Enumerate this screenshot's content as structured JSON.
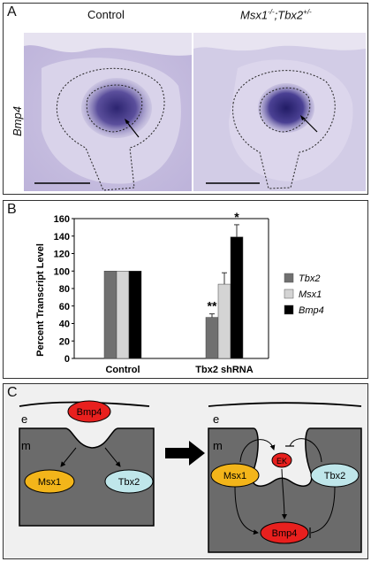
{
  "panel_a": {
    "letter": "A",
    "row_label": "Bmp4",
    "left_title": "Control",
    "right_title_gene1": "Msx1",
    "right_title_gene1_sup": "-/-",
    "right_title_sep": ";",
    "right_title_gene2": "Tbx2",
    "right_title_gene2_sup": "+/-"
  },
  "panel_b": {
    "letter": "B",
    "legend": [
      {
        "label": "Tbx2",
        "color": "#707070"
      },
      {
        "label": "Msx1",
        "color": "#d4d4d4"
      },
      {
        "label": "Bmp4",
        "color": "#000000"
      }
    ],
    "significance": [
      {
        "group": 1,
        "series": 0,
        "text": "**"
      },
      {
        "group": 1,
        "series": 2,
        "text": "*"
      }
    ]
  },
  "chart_data": {
    "type": "bar",
    "categories": [
      "Control",
      "Tbx2 shRNA"
    ],
    "series": [
      {
        "name": "Tbx2",
        "values": [
          100,
          47
        ],
        "errors": [
          0,
          4
        ]
      },
      {
        "name": "Msx1",
        "values": [
          100,
          85
        ],
        "errors": [
          0,
          13
        ]
      },
      {
        "name": "Bmp4",
        "values": [
          100,
          139
        ],
        "errors": [
          0,
          14
        ]
      }
    ],
    "ylabel": "Percent Transcript Level",
    "xlabel": "",
    "ylim": [
      0,
      160
    ],
    "yticks": [
      0,
      20,
      40,
      60,
      80,
      100,
      120,
      140,
      160
    ],
    "legend_position": "right"
  },
  "panel_c": {
    "letter": "C",
    "left": {
      "e": "e",
      "m": "m",
      "bmp4": "Bmp4",
      "msx1": "Msx1",
      "tbx2": "Tbx2"
    },
    "right": {
      "e": "e",
      "m": "m",
      "ek": "EK",
      "msx1": "Msx1",
      "tbx2": "Tbx2",
      "bmp4": "Bmp4"
    }
  },
  "colors": {
    "stain_light": "#d8d3e8",
    "stain_dark": "#3a2f7a",
    "oval_red": "#e8201e",
    "oval_yellow": "#f3b51a",
    "oval_cyan": "#bfe6ea",
    "mesenchyme": "#6b6b6b"
  }
}
